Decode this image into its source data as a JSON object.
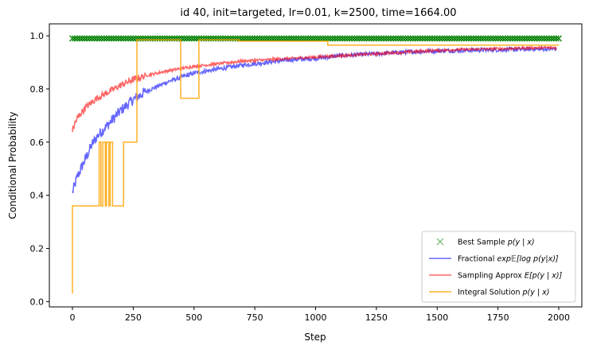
{
  "chart_data": {
    "type": "line",
    "title": "id 40, init=targeted, lr=0.01, k=2500, time=1664.00",
    "xlabel": "Step",
    "ylabel": "Conditional Probability",
    "xlim": [
      -95,
      2095
    ],
    "ylim": [
      -0.02,
      1.045
    ],
    "xticks": [
      0,
      250,
      500,
      750,
      1000,
      1250,
      1500,
      1750,
      2000
    ],
    "yticks": [
      0.0,
      0.2,
      0.4,
      0.6,
      0.8,
      1.0
    ],
    "xtick_labels": [
      "0",
      "250",
      "500",
      "750",
      "1000",
      "1250",
      "1500",
      "1750",
      "2000"
    ],
    "ytick_labels": [
      "0.0",
      "0.2",
      "0.4",
      "0.6",
      "0.8",
      "1.0"
    ],
    "legend_position": "lower right",
    "grid": false,
    "series": [
      {
        "name": "Best Sample p(y | x)",
        "legend_label": "Best Sample",
        "legend_math": "p(y | x)",
        "kind": "marker",
        "color": "#008000",
        "x_range": [
          0,
          2000
        ],
        "value": 0.99
      },
      {
        "name": "Fractional exp𝔼[log p(y|x)]",
        "legend_label": "Fractional",
        "legend_math": "exp𝔼[log p(y|x)]",
        "kind": "line",
        "color": "#0000ff",
        "x": [
          0,
          10,
          20,
          40,
          60,
          80,
          100,
          130,
          160,
          200,
          250,
          300,
          350,
          400,
          450,
          500,
          600,
          700,
          800,
          900,
          1000,
          1100,
          1200,
          1300,
          1400,
          1500,
          1600,
          1700,
          1800,
          1900,
          1990
        ],
        "y": [
          0.41,
          0.44,
          0.47,
          0.51,
          0.55,
          0.59,
          0.62,
          0.65,
          0.68,
          0.72,
          0.76,
          0.79,
          0.81,
          0.83,
          0.845,
          0.86,
          0.875,
          0.89,
          0.9,
          0.91,
          0.915,
          0.925,
          0.93,
          0.935,
          0.94,
          0.943,
          0.945,
          0.947,
          0.948,
          0.95,
          0.95
        ],
        "noise": 0.008
      },
      {
        "name": "Sampling Approx E[p(y | x)]",
        "legend_label": "Sampling Approx",
        "legend_math": "E[p(y | x)]",
        "kind": "line",
        "color": "#ff0000",
        "x": [
          0,
          10,
          20,
          40,
          60,
          80,
          100,
          150,
          200,
          250,
          300,
          400,
          500,
          600,
          700,
          800,
          900,
          1000,
          1100,
          1200,
          1300,
          1400,
          1500,
          1600,
          1700,
          1800,
          1900,
          1990
        ],
        "y": [
          0.645,
          0.67,
          0.69,
          0.715,
          0.735,
          0.75,
          0.765,
          0.79,
          0.815,
          0.835,
          0.85,
          0.87,
          0.885,
          0.895,
          0.905,
          0.91,
          0.915,
          0.92,
          0.925,
          0.93,
          0.935,
          0.94,
          0.945,
          0.948,
          0.95,
          0.952,
          0.955,
          0.955
        ],
        "noise": 0.005
      },
      {
        "name": "Integral Solution p(y | x)",
        "legend_label": "Integral Solution",
        "legend_math": "p(y | x)",
        "kind": "step",
        "color": "#ffa500",
        "x": [
          0,
          0,
          110,
          110,
          117,
          117,
          125,
          125,
          135,
          135,
          140,
          140,
          150,
          150,
          155,
          155,
          165,
          165,
          210,
          210,
          265,
          265,
          445,
          445,
          520,
          520,
          685,
          685,
          1050,
          1050,
          2000
        ],
        "y": [
          0.03,
          0.36,
          0.36,
          0.6,
          0.6,
          0.36,
          0.36,
          0.6,
          0.6,
          0.36,
          0.36,
          0.6,
          0.6,
          0.36,
          0.36,
          0.6,
          0.6,
          0.36,
          0.36,
          0.6,
          0.6,
          0.985,
          0.985,
          0.765,
          0.765,
          0.985,
          0.985,
          0.98,
          0.98,
          0.965,
          0.965
        ]
      }
    ]
  }
}
